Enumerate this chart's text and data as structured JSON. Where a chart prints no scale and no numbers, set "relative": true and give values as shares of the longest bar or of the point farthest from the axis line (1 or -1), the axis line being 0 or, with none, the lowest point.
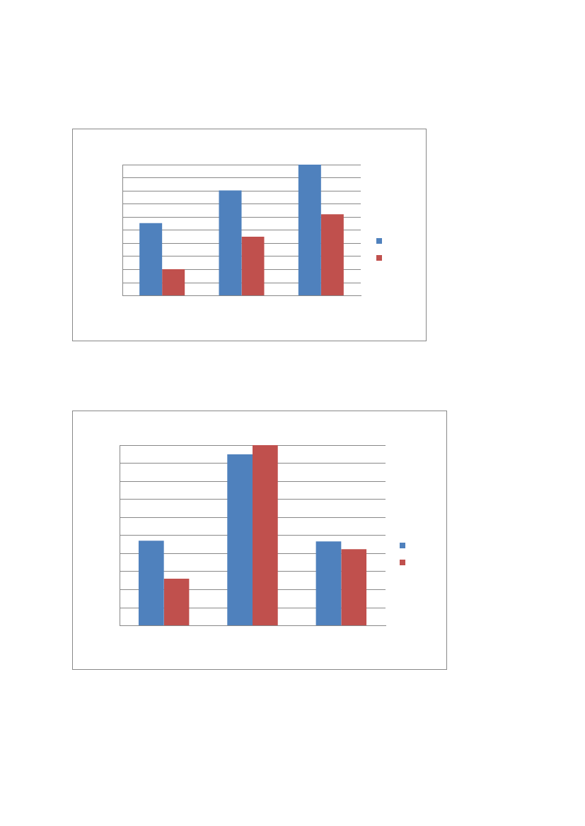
{
  "chart_data": [
    {
      "type": "bar",
      "relative": true,
      "categories": [
        null,
        null,
        null
      ],
      "grid": "y",
      "series": [
        {
          "color": "#4f81bd",
          "values": [
            0.554,
            0.803,
            1
          ]
        },
        {
          "color": "#c0504d",
          "values": [
            0.202,
            0.451,
            0.622
          ]
        }
      ]
    },
    {
      "type": "bar",
      "relative": true,
      "categories": [
        null,
        null,
        null
      ],
      "grid": "y",
      "series": [
        {
          "color": "#4f81bd",
          "values": [
            0.471,
            0.949,
            0.467
          ]
        },
        {
          "color": "#c0504d",
          "values": [
            0.261,
            1,
            0.424
          ]
        }
      ]
    }
  ]
}
